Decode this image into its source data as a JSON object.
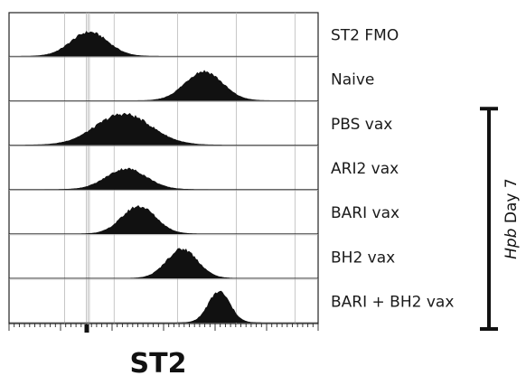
{
  "chart_data": {
    "type": "histogram",
    "title": "",
    "xlabel": "ST2",
    "ylabel": "",
    "x_scale": "biexponential (log-like)",
    "grid": "vertical gridlines",
    "rows": [
      {
        "label": "ST2 FMO",
        "peak": 0.26,
        "spread": 0.06,
        "height": 0.7
      },
      {
        "label": "Naive",
        "peak": 0.63,
        "spread": 0.06,
        "height": 0.85
      },
      {
        "label": "PBS vax",
        "peak": 0.37,
        "spread": 0.09,
        "height": 0.9
      },
      {
        "label": "ARI2 vax",
        "peak": 0.38,
        "spread": 0.065,
        "height": 0.6
      },
      {
        "label": "BARI vax",
        "peak": 0.42,
        "spread": 0.055,
        "height": 0.8
      },
      {
        "label": "BH2 vax",
        "peak": 0.56,
        "spread": 0.05,
        "height": 0.85
      },
      {
        "label": "BARI + BH2 vax",
        "peak": 0.68,
        "spread": 0.035,
        "height": 0.9
      }
    ],
    "bracket": {
      "label_italic": "Hpb",
      "label_rest": " Day 7",
      "spans_rows": [
        2,
        6
      ]
    }
  }
}
